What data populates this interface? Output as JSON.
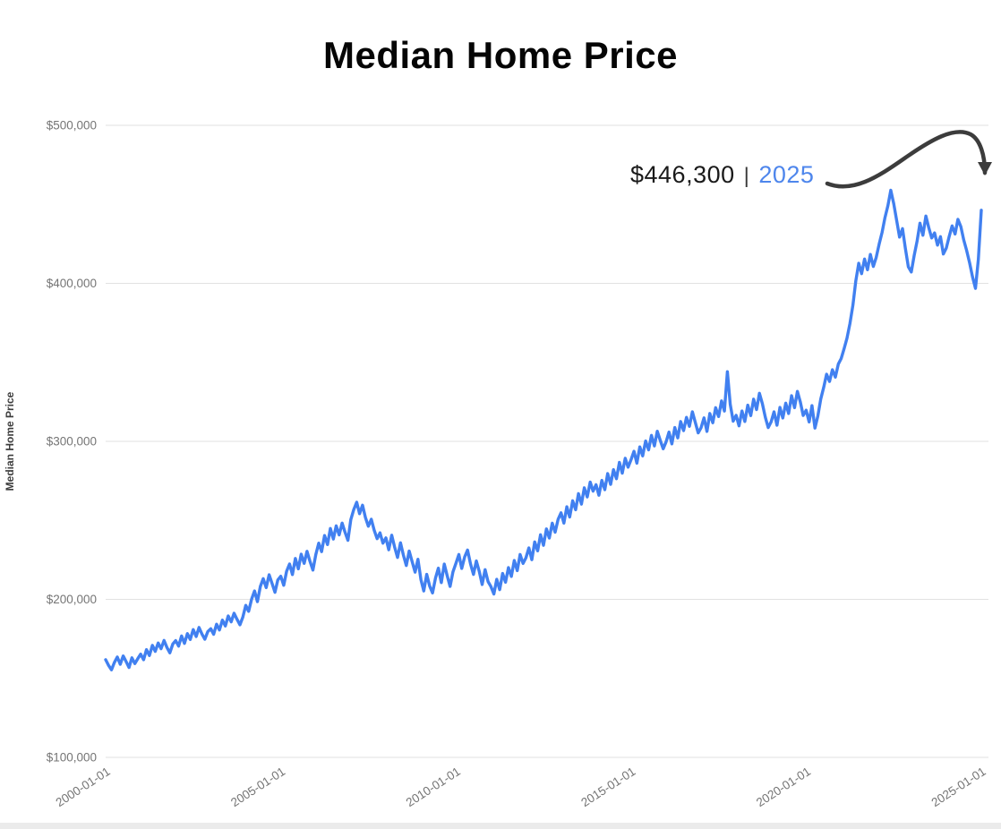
{
  "page": {
    "title": "Median Home Price",
    "background": "#ffffff"
  },
  "annotation": {
    "value": "$446,300",
    "separator": "|",
    "year": "2025",
    "year_color": "#4e86ec",
    "arrow_color": "#3c3c3c"
  },
  "chart_data": {
    "type": "line",
    "title": "Median Home Price",
    "xlabel": "",
    "ylabel": "Median Home Price",
    "series_name": "Median Home Price",
    "x_start": "2000-01-01",
    "x_interval": "monthly",
    "x_tick_labels": [
      "2000-01-01",
      "2005-01-01",
      "2010-01-01",
      "2015-01-01",
      "2020-01-01",
      "2025-01-01"
    ],
    "y_tick_labels": [
      "$100,000",
      "$200,000",
      "$300,000",
      "$400,000",
      "$500,000"
    ],
    "ylim": [
      100000,
      500000
    ],
    "grid": "horizontal",
    "gridline_color": "#e2e2e2",
    "line_color": "#4180f0",
    "last_point_label": "$446,300",
    "values": [
      161800,
      158200,
      155400,
      160100,
      163500,
      158900,
      164200,
      160700,
      156900,
      163000,
      159400,
      162500,
      165300,
      161800,
      168200,
      164500,
      170900,
      167100,
      172400,
      168800,
      174000,
      169500,
      166200,
      171700,
      173900,
      170400,
      176800,
      172100,
      178300,
      174600,
      180900,
      176500,
      182200,
      178000,
      174800,
      179600,
      181400,
      177900,
      184300,
      180600,
      186900,
      183200,
      189500,
      185800,
      191200,
      187400,
      183900,
      188700,
      196200,
      192400,
      200100,
      205300,
      198600,
      208200,
      213100,
      207400,
      215600,
      210200,
      204500,
      212300,
      214600,
      208900,
      217800,
      222400,
      215700,
      225900,
      219300,
      228600,
      222800,
      230400,
      224100,
      218500,
      228300,
      235600,
      230200,
      240400,
      234700,
      244900,
      238200,
      246500,
      240800,
      248300,
      242600,
      237400,
      250400,
      256800,
      261500,
      254200,
      259600,
      251900,
      246300,
      250700,
      243800,
      238400,
      242100,
      235600,
      238900,
      231400,
      240600,
      233200,
      226500,
      235800,
      228100,
      221400,
      230600,
      223900,
      217200,
      225400,
      212600,
      205300,
      215800,
      208400,
      204100,
      213500,
      219800,
      210600,
      222300,
      215100,
      208200,
      217400,
      222800,
      228400,
      219600,
      226900,
      231200,
      222500,
      215800,
      224300,
      217600,
      209400,
      218800,
      211300,
      208100,
      203400,
      212700,
      206200,
      216400,
      210800,
      220100,
      214500,
      224600,
      218200,
      228400,
      222700,
      226300,
      232600,
      225100,
      236400,
      230700,
      240900,
      234200,
      244600,
      238800,
      248200,
      242500,
      250600,
      254800,
      248300,
      258600,
      252100,
      262400,
      256700,
      266900,
      260300,
      270600,
      264800,
      274200,
      268500,
      272600,
      265900,
      275300,
      269400,
      279600,
      272800,
      282100,
      276400,
      286700,
      279900,
      289300,
      283600,
      288400,
      293700,
      286200,
      296500,
      290800,
      300200,
      294600,
      303800,
      297100,
      306400,
      300700,
      295300,
      299600,
      305900,
      298400,
      308700,
      302200,
      312500,
      306800,
      315200,
      309500,
      318700,
      312100,
      305400,
      308600,
      314900,
      306300,
      317600,
      311800,
      321300,
      315700,
      325600,
      319200,
      344100,
      323400,
      312800,
      316500,
      309800,
      319200,
      312600,
      322900,
      316300,
      326700,
      320100,
      330400,
      323800,
      315200,
      308700,
      312400,
      318700,
      310200,
      321500,
      314800,
      324200,
      317600,
      328900,
      321300,
      331600,
      324900,
      316400,
      319700,
      312300,
      322600,
      308400,
      315900,
      326800,
      334200,
      342500,
      337900,
      345300,
      340600,
      348900,
      352400,
      358700,
      365300,
      374600,
      386200,
      401400,
      412700,
      406100,
      415400,
      408600,
      418300,
      410700,
      416400,
      424800,
      432300,
      441600,
      449200,
      458900,
      450400,
      439700,
      429300,
      434600,
      422100,
      410500,
      407200,
      417500,
      426800,
      438100,
      430400,
      442600,
      435300,
      428700,
      431900,
      424200,
      429500,
      418600,
      422300,
      429600,
      436400,
      431200,
      440500,
      435800,
      427400,
      420600,
      412800,
      404100,
      396800,
      415200,
      446300
    ]
  }
}
